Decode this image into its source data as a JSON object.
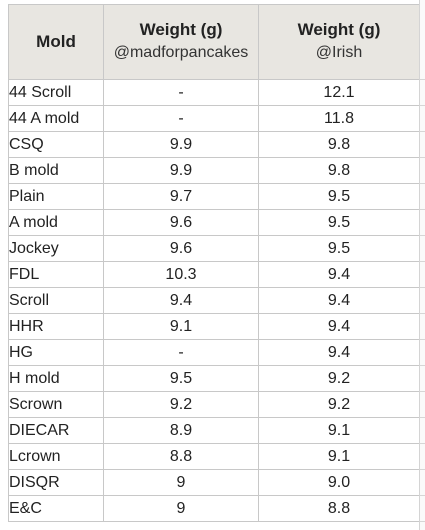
{
  "table": {
    "header": {
      "mold": "Mold",
      "col1_title": "Weight (g)",
      "col1_sub": "@madforpancakes",
      "col2_title": "Weight (g)",
      "col2_sub": "@Irish"
    },
    "rows": [
      {
        "mold": "44 Scroll",
        "mad": "-",
        "irish": "12.1"
      },
      {
        "mold": "44 A mold",
        "mad": "-",
        "irish": "11.8"
      },
      {
        "mold": "CSQ",
        "mad": "9.9",
        "irish": "9.8"
      },
      {
        "mold": "B mold",
        "mad": "9.9",
        "irish": "9.8"
      },
      {
        "mold": "Plain",
        "mad": "9.7",
        "irish": "9.5"
      },
      {
        "mold": "A mold",
        "mad": "9.6",
        "irish": "9.5"
      },
      {
        "mold": "Jockey",
        "mad": "9.6",
        "irish": "9.5"
      },
      {
        "mold": "FDL",
        "mad": "10.3",
        "irish": "9.4"
      },
      {
        "mold": "Scroll",
        "mad": "9.4",
        "irish": "9.4"
      },
      {
        "mold": "HHR",
        "mad": "9.1",
        "irish": "9.4"
      },
      {
        "mold": "HG",
        "mad": "-",
        "irish": "9.4"
      },
      {
        "mold": "H mold",
        "mad": "9.5",
        "irish": "9.2"
      },
      {
        "mold": "Scrown",
        "mad": "9.2",
        "irish": "9.2"
      },
      {
        "mold": "DIECAR",
        "mad": "8.9",
        "irish": "9.1"
      },
      {
        "mold": "Lcrown",
        "mad": "8.8",
        "irish": "9.1"
      },
      {
        "mold": "DISQR",
        "mad": "9",
        "irish": "9.0"
      },
      {
        "mold": "E&C",
        "mad": "9",
        "irish": "8.8"
      }
    ]
  },
  "colors": {
    "header_bg": "#e8e6e1",
    "grid_line": "#c8c8c8"
  }
}
